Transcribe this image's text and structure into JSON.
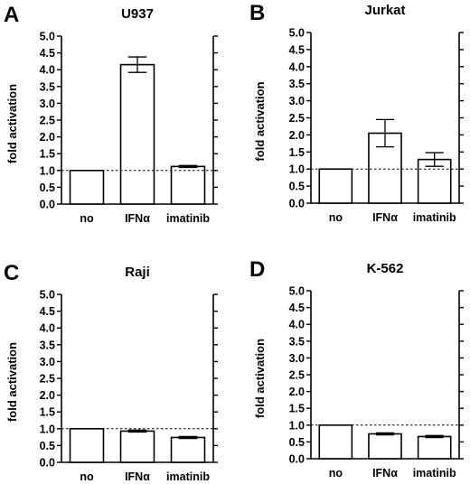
{
  "chart_data": [
    {
      "type": "bar",
      "panel": "A",
      "title": "U937",
      "ylabel": "fold activation",
      "xlabel": "",
      "categories": [
        "no",
        "IFNα",
        "imatinib"
      ],
      "values": [
        1.0,
        4.15,
        1.12
      ],
      "errors": [
        0.0,
        0.23,
        0.03
      ],
      "baseline": 1.0,
      "ylim": [
        0,
        5
      ],
      "yticks": [
        "0.0",
        "0.5",
        "1.0",
        "1.5",
        "2.0",
        "2.5",
        "3.0",
        "3.5",
        "4.0",
        "4.5",
        "5.0"
      ],
      "grid": false,
      "legend": "none"
    },
    {
      "type": "bar",
      "panel": "B",
      "title": "Jurkat",
      "ylabel": "fold activation",
      "xlabel": "",
      "categories": [
        "no",
        "IFNα",
        "imatinib"
      ],
      "values": [
        1.0,
        2.05,
        1.28
      ],
      "errors": [
        0.0,
        0.4,
        0.2
      ],
      "baseline": 1.0,
      "ylim": [
        0,
        5
      ],
      "yticks": [
        "0.0",
        "0.5",
        "1.0",
        "1.5",
        "2.0",
        "2.5",
        "3.0",
        "3.5",
        "4.0",
        "4.5",
        "5.0"
      ],
      "grid": false,
      "legend": "none"
    },
    {
      "type": "bar",
      "panel": "C",
      "title": "Raji",
      "ylabel": "fold activation",
      "xlabel": "",
      "categories": [
        "no",
        "IFNα",
        "imatinib"
      ],
      "values": [
        1.0,
        0.93,
        0.74
      ],
      "errors": [
        0.0,
        0.03,
        0.03
      ],
      "baseline": 1.0,
      "ylim": [
        0,
        5
      ],
      "yticks": [
        "0.0",
        "0.5",
        "1.0",
        "1.5",
        "2.0",
        "2.5",
        "3.0",
        "3.5",
        "4.0",
        "4.5",
        "5.0"
      ],
      "grid": false,
      "legend": "none"
    },
    {
      "type": "bar",
      "panel": "D",
      "title": "K-562",
      "ylabel": "fold activation",
      "xlabel": "",
      "categories": [
        "no",
        "IFNα",
        "imatinib"
      ],
      "values": [
        1.0,
        0.74,
        0.66
      ],
      "errors": [
        0.0,
        0.03,
        0.03
      ],
      "baseline": 1.0,
      "ylim": [
        0,
        5
      ],
      "yticks": [
        "0.0",
        "0.5",
        "1.0",
        "1.5",
        "2.0",
        "2.5",
        "3.0",
        "3.5",
        "4.0",
        "4.5",
        "5.0"
      ],
      "grid": false,
      "legend": "none"
    }
  ],
  "colors": {
    "bar_fill": "#ffffff",
    "stroke": "#000000",
    "background": "#ffffff"
  }
}
